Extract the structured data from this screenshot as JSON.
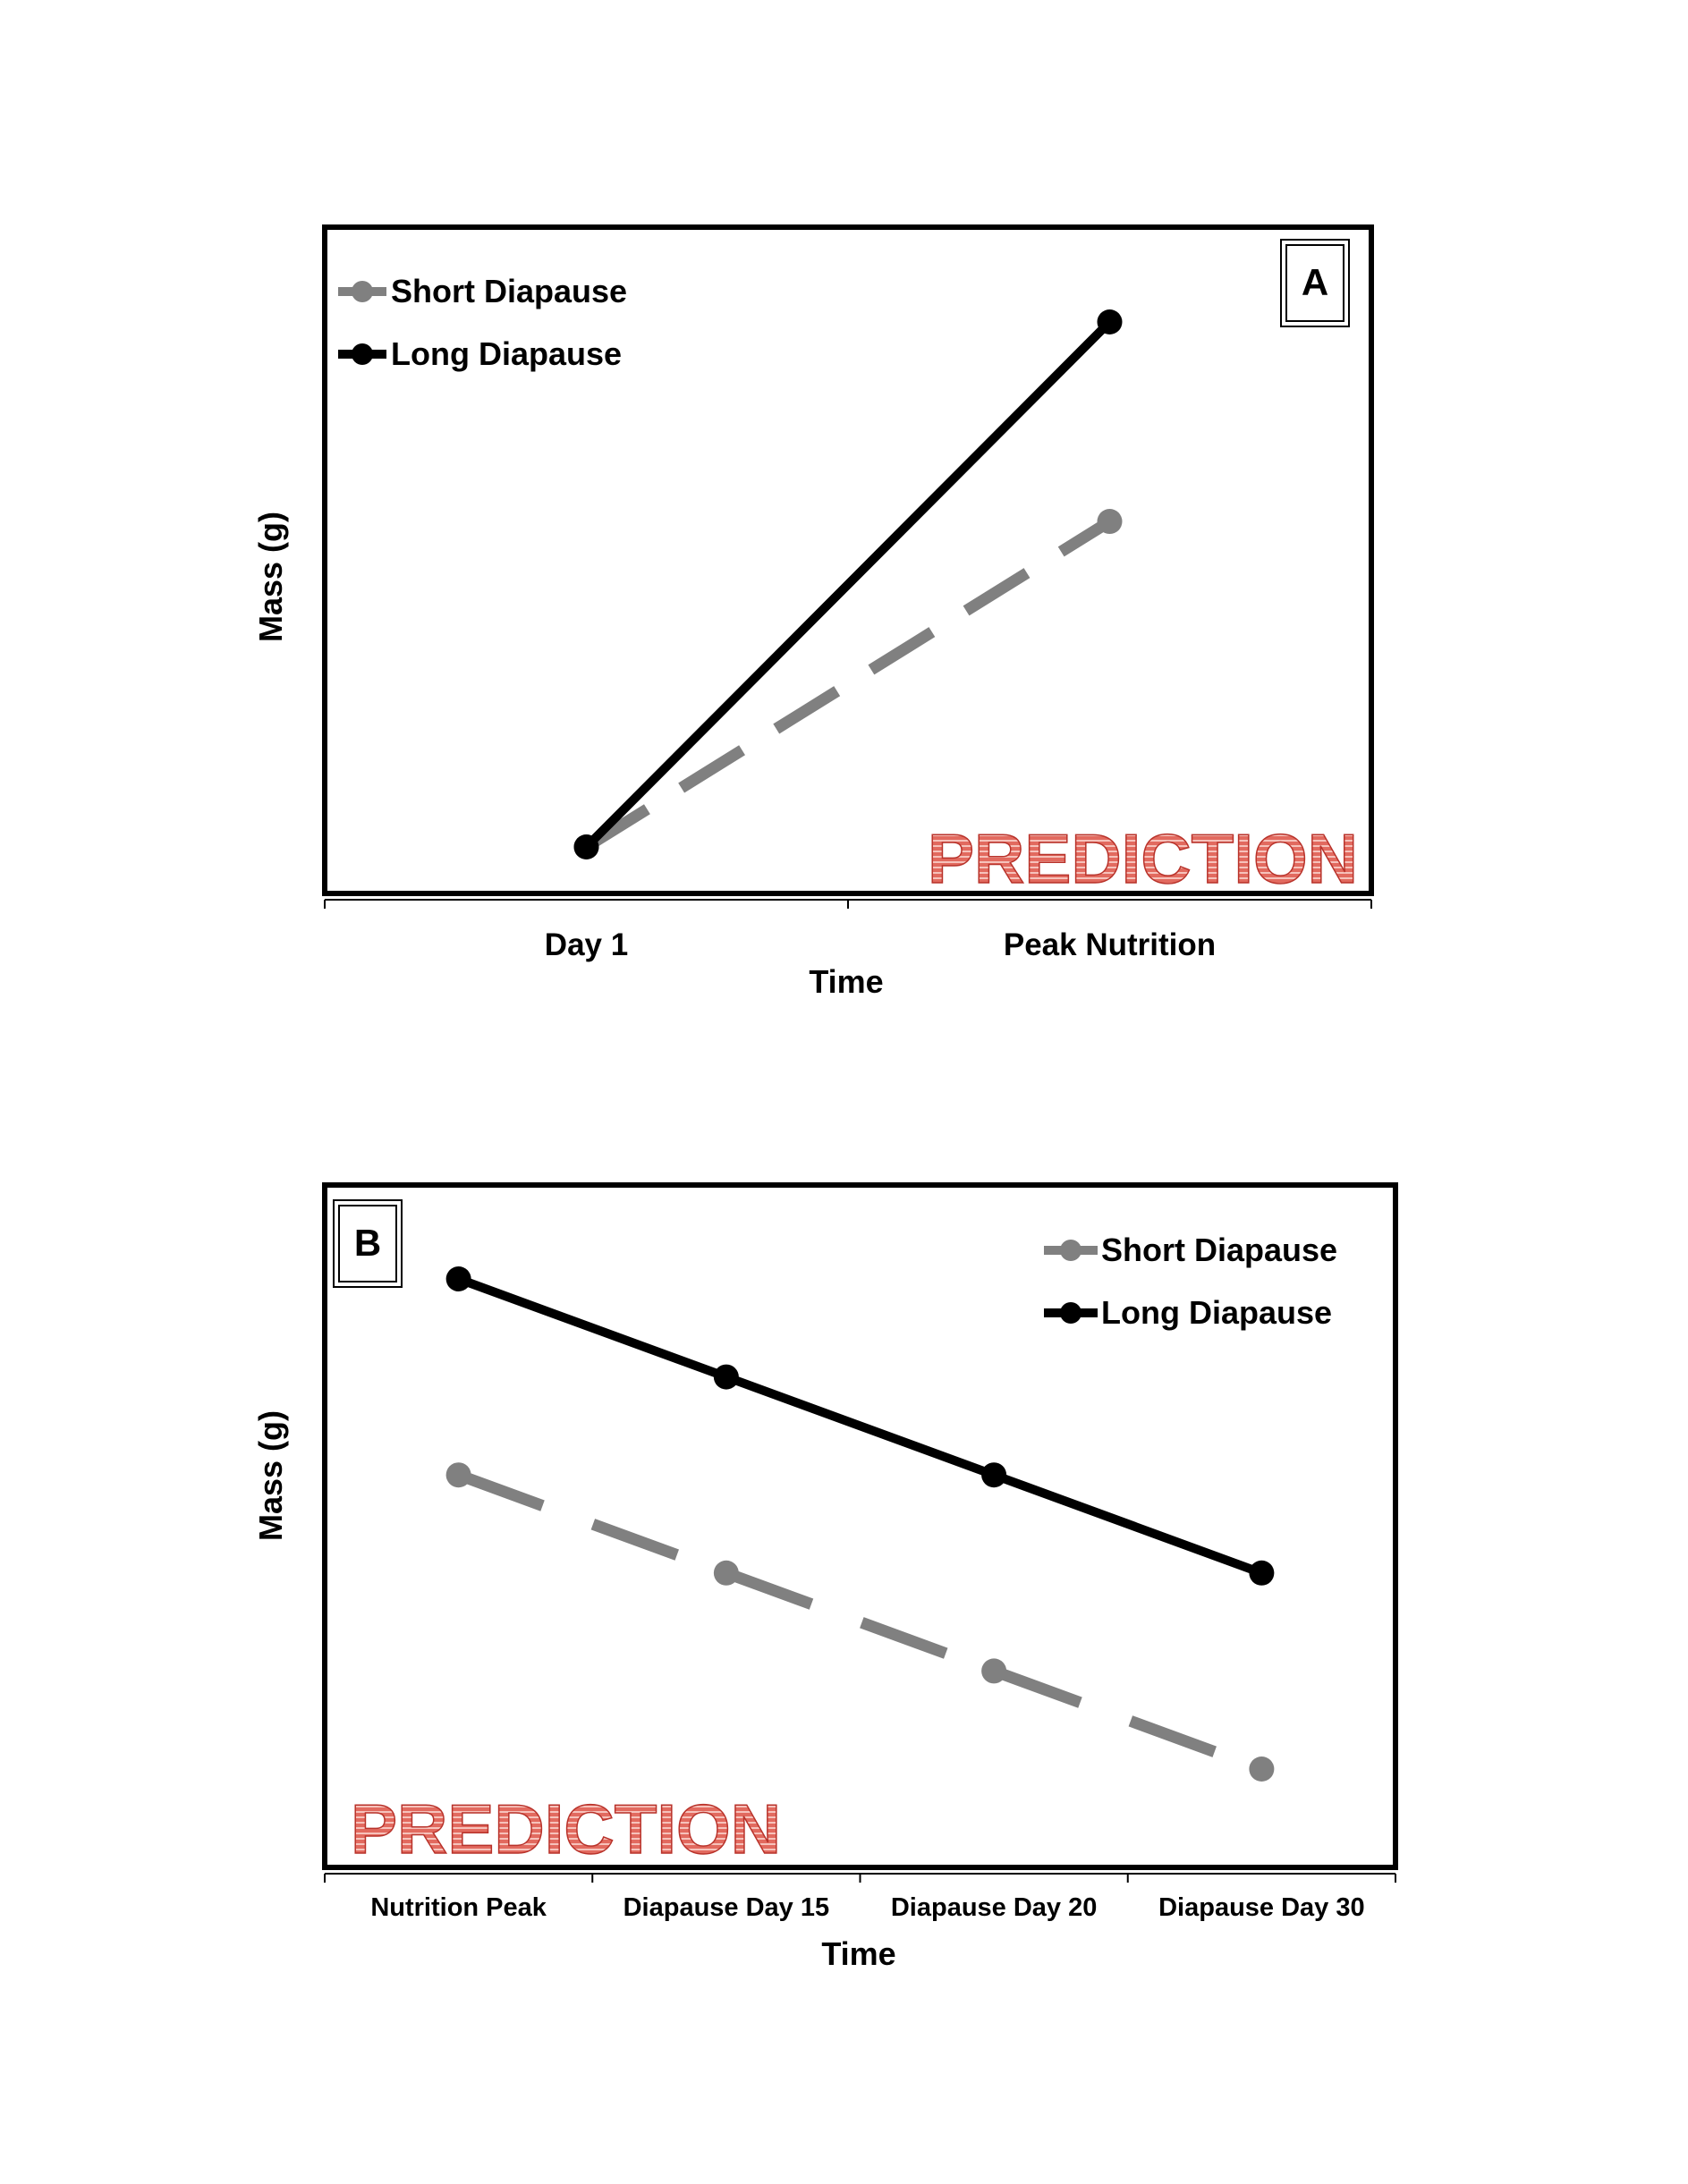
{
  "chart_data": [
    {
      "type": "line",
      "panel_label": "A",
      "stamp": "PREDICTION",
      "xlabel": "Time",
      "ylabel": "Mass (g)",
      "categories": [
        "Day 1",
        "Peak Nutrition"
      ],
      "series": [
        {
          "name": "Short Diapause",
          "values": [
            0.0,
            0.62
          ],
          "color": "#808080",
          "style": "dashed"
        },
        {
          "name": "Long Diapause",
          "values": [
            0.0,
            1.0
          ],
          "color": "#000000",
          "style": "solid"
        }
      ],
      "yticks_shown": false,
      "grid": false,
      "legend_position": "top-left"
    },
    {
      "type": "line",
      "panel_label": "B",
      "stamp": "PREDICTION",
      "xlabel": "Time",
      "ylabel": "Mass (g)",
      "categories": [
        "Nutrition Peak",
        "Diapause  Day 15",
        "Diapause  Day 20",
        "Diapause  Day 30"
      ],
      "series": [
        {
          "name": "Short Diapause",
          "values": [
            0.6,
            0.4,
            0.2,
            0.0
          ],
          "color": "#808080",
          "style": "dashed"
        },
        {
          "name": "Long Diapause",
          "values": [
            1.0,
            0.8,
            0.6,
            0.4
          ],
          "color": "#000000",
          "style": "solid"
        }
      ],
      "yticks_shown": false,
      "grid": false,
      "legend_position": "top-right"
    }
  ]
}
